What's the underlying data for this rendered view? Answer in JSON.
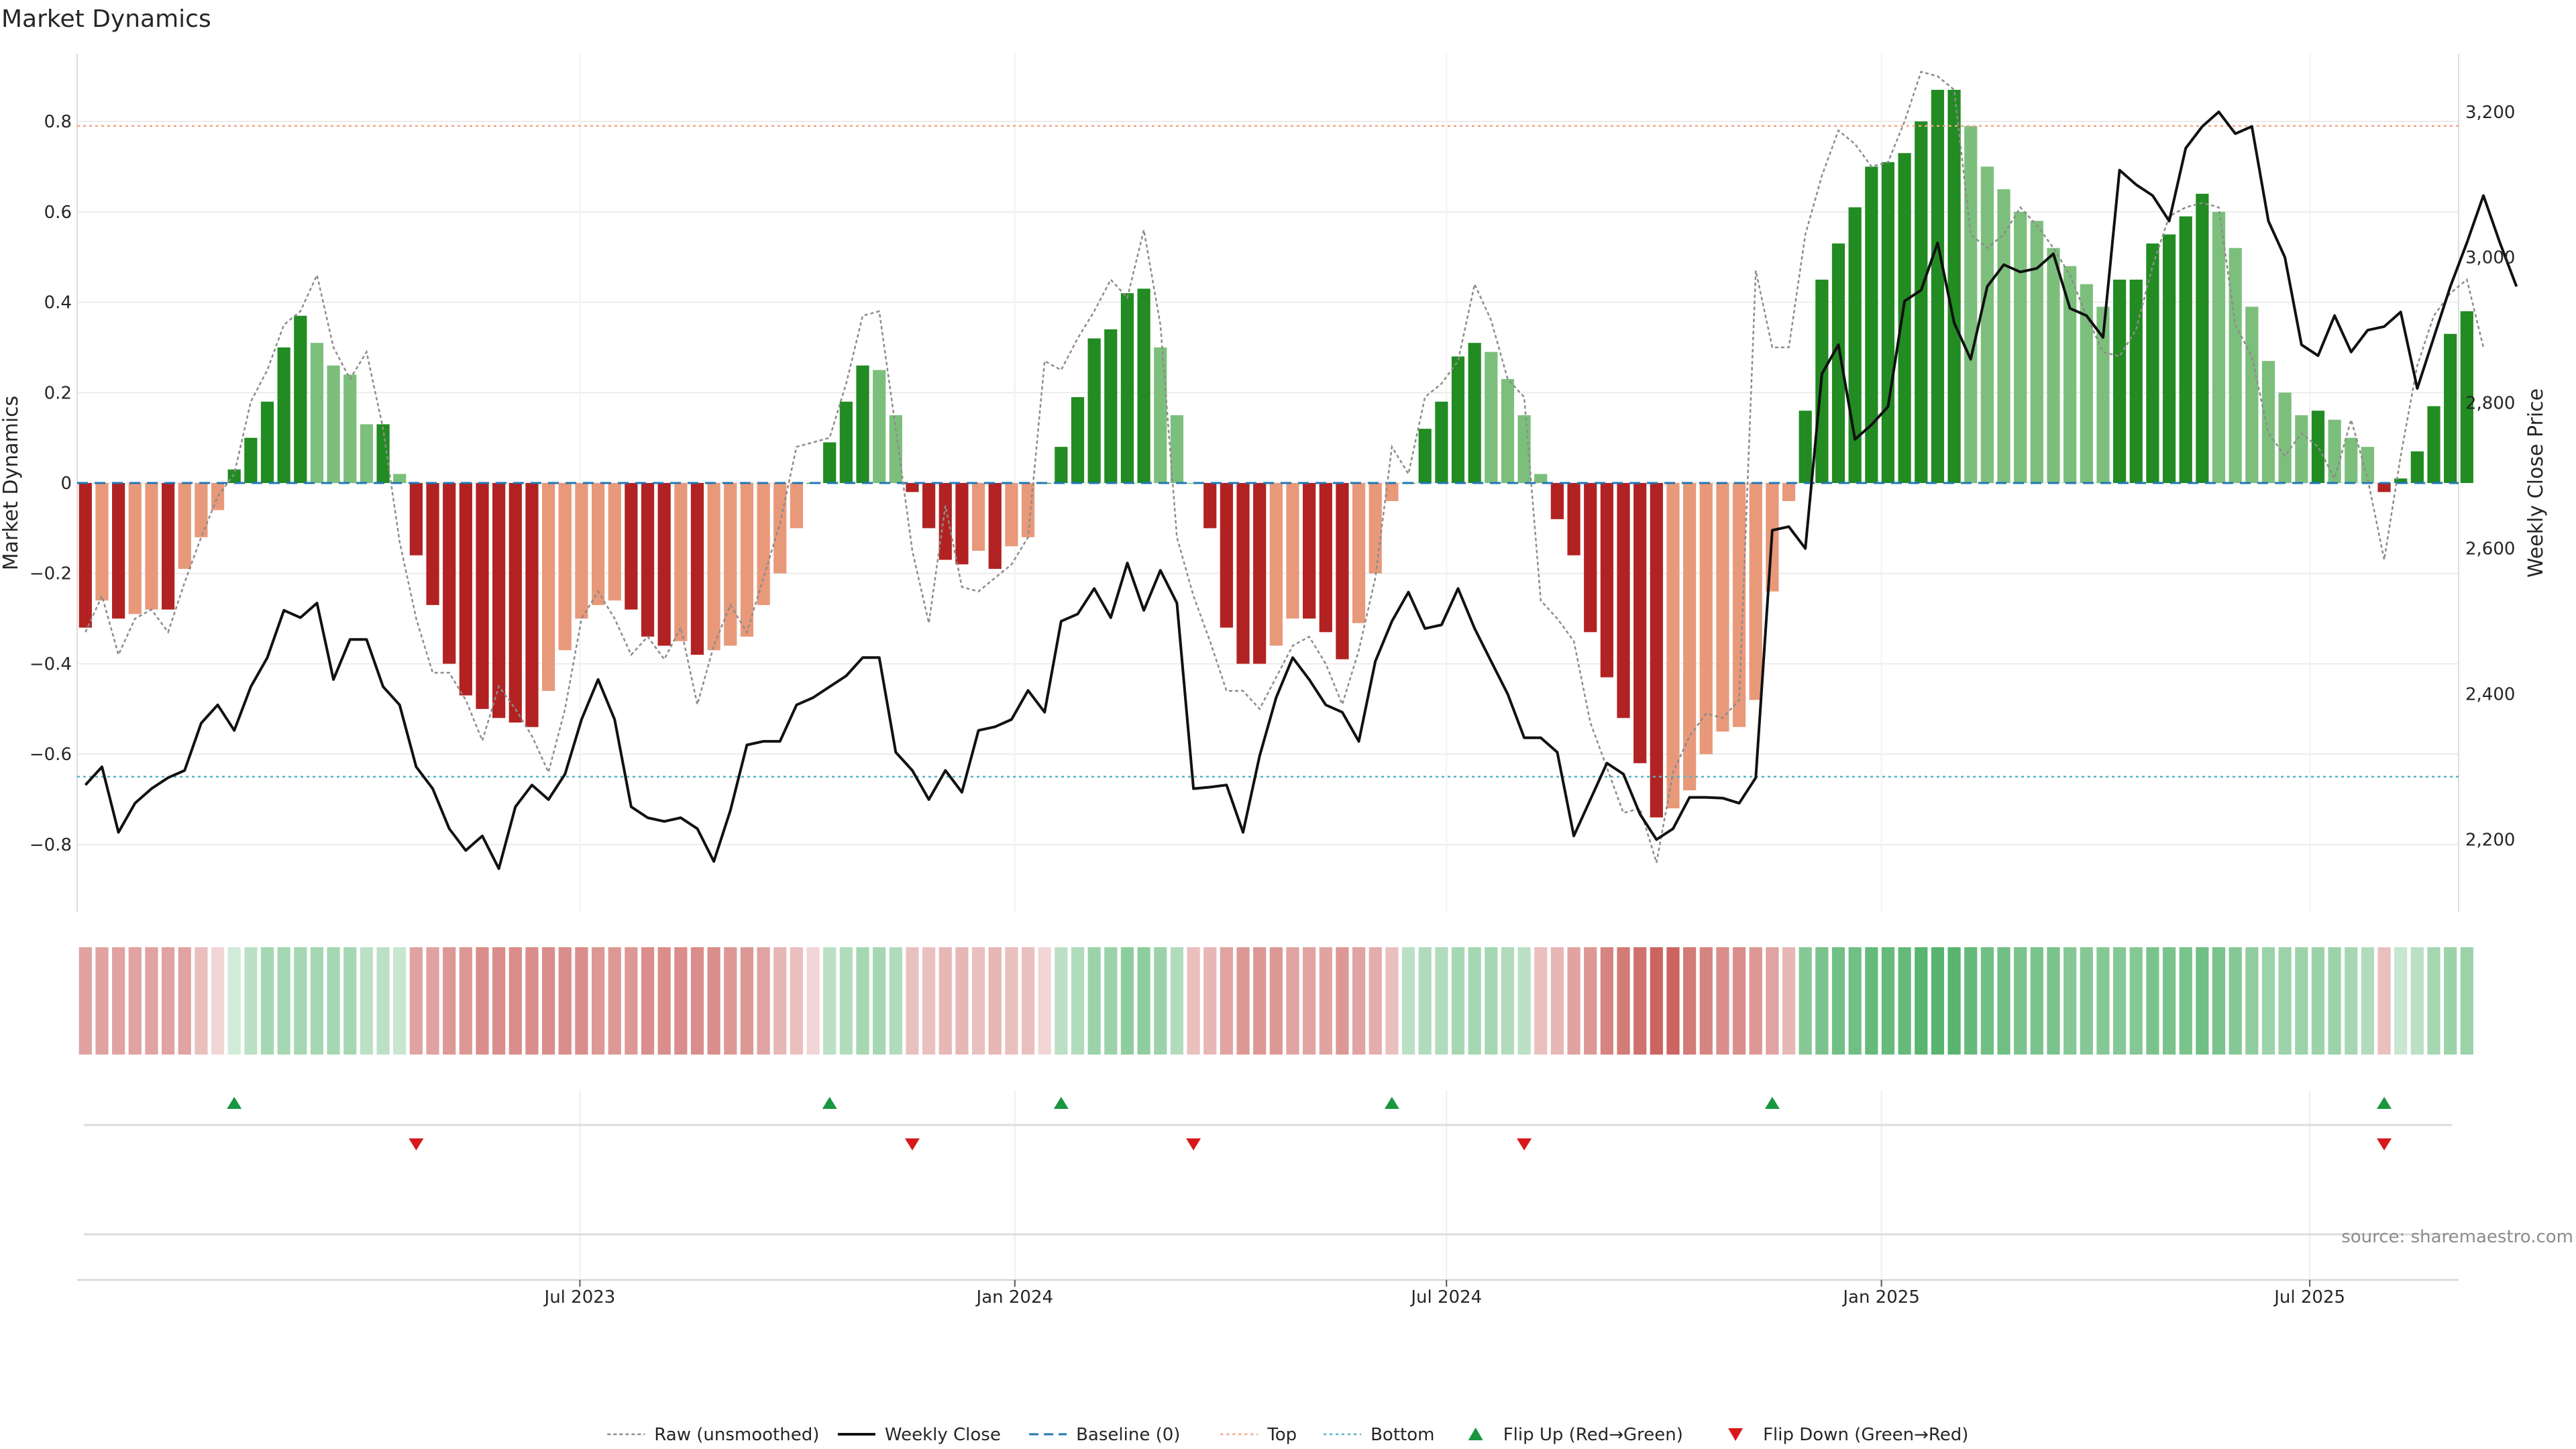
{
  "chart_data": {
    "type": "bar",
    "title": "Market Dynamics",
    "ylabel_left": "Market Dynamics",
    "ylabel_right": "Weekly Close Price",
    "source": "source: sharemaestro.com",
    "ylim_left": [
      -0.95,
      0.95
    ],
    "ylim_right": [
      2100,
      3280
    ],
    "yticks_left": [
      {
        "value": -0.8,
        "label": "−0.8"
      },
      {
        "value": -0.6,
        "label": "−0.6"
      },
      {
        "value": -0.4,
        "label": "−0.4"
      },
      {
        "value": -0.2,
        "label": "−0.2"
      },
      {
        "value": 0,
        "label": "0"
      },
      {
        "value": 0.2,
        "label": "0.2"
      },
      {
        "value": 0.4,
        "label": "0.4"
      },
      {
        "value": 0.6,
        "label": "0.6"
      },
      {
        "value": 0.8,
        "label": "0.8"
      }
    ],
    "yticks_right": [
      {
        "value": 2200,
        "label": "2,200"
      },
      {
        "value": 2400,
        "label": "2,400"
      },
      {
        "value": 2600,
        "label": "2,600"
      },
      {
        "value": 2800,
        "label": "2,800"
      },
      {
        "value": 3000,
        "label": "3,000"
      },
      {
        "value": 3200,
        "label": "3,200"
      }
    ],
    "xticks": [
      {
        "week": 29.9,
        "label": "Jul 2023"
      },
      {
        "week": 56.2,
        "label": "Jan 2024"
      },
      {
        "week": 82.3,
        "label": "Jul 2024"
      },
      {
        "week": 108.6,
        "label": "Jan 2025"
      },
      {
        "week": 134.5,
        "label": "Jul 2025"
      }
    ],
    "weeks_total": 144,
    "top_level": 0.79,
    "bottom_level": -0.65,
    "baseline": 0,
    "values": [
      -0.32,
      -0.26,
      -0.3,
      -0.29,
      -0.28,
      -0.28,
      -0.19,
      -0.12,
      -0.06,
      0.03,
      0.1,
      0.18,
      0.3,
      0.37,
      0.31,
      0.26,
      0.24,
      0.13,
      0.13,
      0.02,
      -0.16,
      -0.27,
      -0.4,
      -0.47,
      -0.5,
      -0.52,
      -0.53,
      -0.54,
      -0.46,
      -0.37,
      -0.3,
      -0.27,
      -0.26,
      -0.28,
      -0.34,
      -0.36,
      -0.35,
      -0.38,
      -0.37,
      -0.36,
      -0.34,
      -0.27,
      -0.2,
      -0.1,
      0,
      0.09,
      0.18,
      0.26,
      0.25,
      0.15,
      -0.02,
      -0.1,
      -0.17,
      -0.18,
      -0.15,
      -0.19,
      -0.14,
      -0.12,
      0,
      0.08,
      0.19,
      0.32,
      0.34,
      0.42,
      0.43,
      0.3,
      0.15,
      0,
      -0.1,
      -0.32,
      -0.4,
      -0.4,
      -0.36,
      -0.3,
      -0.3,
      -0.33,
      -0.39,
      -0.31,
      -0.2,
      -0.04,
      0,
      0.12,
      0.18,
      0.28,
      0.31,
      0.29,
      0.23,
      0.15,
      0.02,
      -0.08,
      -0.16,
      -0.33,
      -0.43,
      -0.52,
      -0.62,
      -0.74,
      -0.72,
      -0.68,
      -0.6,
      -0.55,
      -0.54,
      -0.48,
      -0.24,
      -0.04,
      0.16,
      0.45,
      0.53,
      0.61,
      0.7,
      0.71,
      0.73,
      0.8,
      0.87,
      0.87,
      0.79,
      0.7,
      0.65,
      0.6,
      0.58,
      0.52,
      0.48,
      0.44,
      0.39,
      0.45,
      0.45,
      0.53,
      0.55,
      0.59,
      0.64,
      0.6,
      0.52,
      0.39,
      0.27,
      0.2,
      0.15,
      0.16,
      0.14,
      0.1,
      0.08,
      -0.02,
      0.01,
      0.07,
      0.17,
      0.33,
      0.38
    ],
    "raw_values": [
      -0.33,
      -0.25,
      -0.38,
      -0.3,
      -0.28,
      -0.33,
      -0.22,
      -0.12,
      -0.03,
      0.02,
      0.18,
      0.25,
      0.35,
      0.38,
      0.46,
      0.3,
      0.23,
      0.29,
      0.12,
      -0.13,
      -0.3,
      -0.42,
      -0.42,
      -0.48,
      -0.57,
      -0.45,
      -0.5,
      -0.56,
      -0.64,
      -0.5,
      -0.3,
      -0.24,
      -0.3,
      -0.38,
      -0.34,
      -0.39,
      -0.32,
      -0.49,
      -0.36,
      -0.27,
      -0.33,
      -0.21,
      -0.09,
      0.08,
      0.09,
      0.1,
      0.22,
      0.37,
      0.38,
      0.12,
      -0.15,
      -0.31,
      -0.05,
      -0.23,
      -0.24,
      -0.21,
      -0.18,
      -0.12,
      0.27,
      0.25,
      0.32,
      0.38,
      0.45,
      0.41,
      0.56,
      0.35,
      -0.12,
      -0.25,
      -0.35,
      -0.46,
      -0.46,
      -0.5,
      -0.43,
      -0.36,
      -0.34,
      -0.4,
      -0.49,
      -0.37,
      -0.21,
      0.08,
      0.02,
      0.19,
      0.22,
      0.27,
      0.44,
      0.36,
      0.23,
      0.19,
      -0.26,
      -0.3,
      -0.35,
      -0.53,
      -0.63,
      -0.73,
      -0.72,
      -0.84,
      -0.64,
      -0.56,
      -0.51,
      -0.52,
      -0.48,
      0.47,
      0.3,
      0.3,
      0.55,
      0.68,
      0.78,
      0.75,
      0.7,
      0.71,
      0.8,
      0.91,
      0.9,
      0.87,
      0.55,
      0.52,
      0.55,
      0.61,
      0.57,
      0.52,
      0.46,
      0.37,
      0.29,
      0.28,
      0.34,
      0.48,
      0.59,
      0.61,
      0.62,
      0.61,
      0.35,
      0.28,
      0.11,
      0.06,
      0.11,
      0.08,
      0.01,
      0.14,
      0.01,
      -0.17,
      0.06,
      0.26,
      0.37,
      0.42,
      0.45,
      0.3
    ],
    "weekly_close": [
      2275,
      2300,
      2210,
      2250,
      2270,
      2285,
      2295,
      2360,
      2385,
      2350,
      2410,
      2450,
      2515,
      2505,
      2525,
      2420,
      2475,
      2475,
      2410,
      2385,
      2300,
      2270,
      2215,
      2185,
      2205,
      2160,
      2245,
      2275,
      2255,
      2290,
      2365,
      2420,
      2365,
      2245,
      2230,
      2225,
      2230,
      2215,
      2170,
      2240,
      2330,
      2335,
      2335,
      2385,
      2395,
      2410,
      2425,
      2450,
      2450,
      2320,
      2295,
      2255,
      2295,
      2265,
      2350,
      2355,
      2365,
      2405,
      2375,
      2500,
      2510,
      2545,
      2505,
      2580,
      2515,
      2570,
      2525,
      2270,
      2272,
      2275,
      2210,
      2315,
      2395,
      2450,
      2420,
      2385,
      2375,
      2335,
      2445,
      2500,
      2540,
      2490,
      2495,
      2545,
      2490,
      2445,
      2400,
      2340,
      2340,
      2320,
      2205,
      2255,
      2305,
      2290,
      2235,
      2200,
      2215,
      2258,
      2258,
      2257,
      2250,
      2285,
      2625,
      2630,
      2600,
      2840,
      2880,
      2750,
      2770,
      2795,
      2940,
      2955,
      3020,
      2910,
      2860,
      2960,
      2990,
      2980,
      2985,
      3005,
      2930,
      2920,
      2890,
      3120,
      3100,
      3085,
      3050,
      3150,
      3180,
      3200,
      3170,
      3180,
      3050,
      3000,
      2880,
      2865,
      2920,
      2870,
      2900,
      2905,
      2925,
      2820,
      2890,
      2960,
      3020,
      3085,
      3020,
      2960
    ],
    "regime_intensity": [
      -0.45,
      -0.45,
      -0.45,
      -0.45,
      -0.45,
      -0.45,
      -0.45,
      -0.3,
      -0.2,
      0.2,
      0.3,
      0.4,
      0.4,
      0.4,
      0.4,
      0.4,
      0.4,
      0.3,
      0.3,
      0.25,
      -0.45,
      -0.45,
      -0.5,
      -0.5,
      -0.55,
      -0.55,
      -0.55,
      -0.55,
      -0.55,
      -0.55,
      -0.55,
      -0.5,
      -0.5,
      -0.5,
      -0.55,
      -0.55,
      -0.55,
      -0.55,
      -0.55,
      -0.5,
      -0.5,
      -0.45,
      -0.35,
      -0.3,
      -0.2,
      0.3,
      0.35,
      0.4,
      0.4,
      0.35,
      -0.3,
      -0.3,
      -0.35,
      -0.35,
      -0.3,
      -0.35,
      -0.3,
      -0.3,
      -0.2,
      0.3,
      0.35,
      0.45,
      0.45,
      0.5,
      0.5,
      0.45,
      0.35,
      -0.3,
      -0.35,
      -0.45,
      -0.5,
      -0.5,
      -0.5,
      -0.45,
      -0.45,
      -0.45,
      -0.5,
      -0.45,
      -0.4,
      -0.3,
      0.3,
      0.35,
      0.35,
      0.4,
      0.4,
      0.4,
      0.35,
      0.3,
      -0.3,
      -0.35,
      -0.45,
      -0.5,
      -0.6,
      -0.65,
      -0.7,
      -0.75,
      -0.75,
      -0.65,
      -0.6,
      -0.55,
      -0.55,
      -0.5,
      -0.45,
      -0.35,
      0.55,
      0.6,
      0.65,
      0.65,
      0.7,
      0.7,
      0.7,
      0.75,
      0.75,
      0.75,
      0.7,
      0.65,
      0.65,
      0.6,
      0.6,
      0.6,
      0.55,
      0.55,
      0.55,
      0.55,
      0.55,
      0.6,
      0.6,
      0.6,
      0.65,
      0.6,
      0.55,
      0.5,
      0.45,
      0.45,
      0.45,
      0.45,
      0.45,
      0.4,
      0.35,
      -0.3,
      0.25,
      0.3,
      0.4,
      0.45,
      0.45
    ],
    "flip_up_weeks": [
      9,
      45,
      59,
      79,
      102,
      139
    ],
    "flip_down_weeks": [
      20,
      50,
      67,
      87,
      139
    ],
    "colors": {
      "bull_strong": "#228b22",
      "bull_weak": "#7cbf7c",
      "bear_strong": "#b22222",
      "bear_weak": "#e8997a",
      "raw_line": "#8c8c8c",
      "weekly_close": "#111111",
      "baseline": "#1f77b4",
      "top_line": "#f4a582",
      "bottom_line": "#4fb3c8",
      "flip_up": "#1a9641",
      "flip_down": "#d7191c"
    },
    "legend": [
      {
        "label": "Raw (unsmoothed)",
        "icon": "dotted-line"
      },
      {
        "label": "Weekly Close",
        "icon": "solid-line"
      },
      {
        "label": "Baseline (0)",
        "icon": "dashed-line"
      },
      {
        "label": "Top",
        "icon": "dotted-line-orange"
      },
      {
        "label": "Bottom",
        "icon": "dotted-line-cyan"
      },
      {
        "label": "Flip Up (Red→Green)",
        "icon": "triangle-up"
      },
      {
        "label": "Flip Down (Green→Red)",
        "icon": "triangle-down"
      }
    ],
    "legend_position": "bottom-center",
    "grid": true
  }
}
